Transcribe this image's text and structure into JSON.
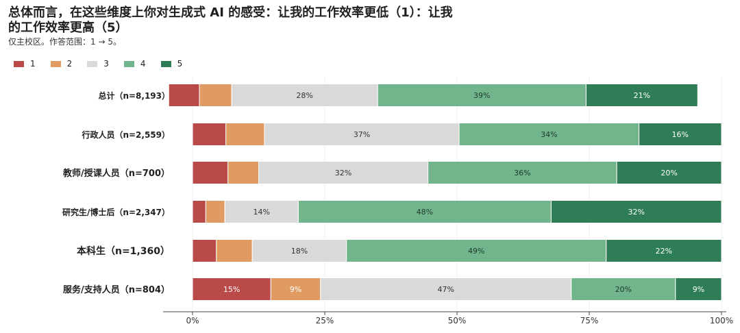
{
  "chart_data": {
    "type": "bar",
    "orientation": "horizontal",
    "stacked": true,
    "title": "总体而言，在这些维度上你对生成式 AI 的感受：让我的工作效率更低（1）：让我的工作效率更高（5）",
    "subtitle": "仅主校区。作答范围：1 → 5。",
    "xlabel": "",
    "ylabel": "",
    "xlim": [
      0,
      100
    ],
    "grid": true,
    "legend_position": "top-left",
    "x_ticks": [
      "0%",
      "25%",
      "50%",
      "75%",
      "100%"
    ],
    "x_tick_values": [
      0,
      25,
      50,
      75,
      100
    ],
    "categories": [
      "总计（n=8,193）",
      "行政人员（n=2,559）",
      "教师/授课人员（n=700）",
      "研究生/博士后（n=2,347）",
      "本科生（n=1,360）",
      "服务/支持人员（n=804）"
    ],
    "offsets": [
      -4.5,
      0,
      0,
      0,
      0,
      0
    ],
    "series": [
      {
        "name": "1",
        "color": "#b94a48",
        "values": [
          5.8,
          6.3,
          6.7,
          2.5,
          4.5,
          14.8
        ],
        "labels": [
          "",
          "",
          "",
          "",
          "",
          "15%"
        ]
      },
      {
        "name": "2",
        "color": "#e09b63",
        "values": [
          6.1,
          7.3,
          5.8,
          3.6,
          6.8,
          9.4
        ],
        "labels": [
          "",
          "",
          "",
          "",
          "",
          "9%"
        ]
      },
      {
        "name": "3",
        "color": "#d9d9d9",
        "values": [
          27.6,
          36.8,
          32.0,
          13.9,
          17.8,
          47.4
        ],
        "labels": [
          "28%",
          "37%",
          "32%",
          "14%",
          "18%",
          "47%"
        ]
      },
      {
        "name": "4",
        "color": "#72b58c",
        "values": [
          39.4,
          34.0,
          35.7,
          47.8,
          49.1,
          19.7
        ],
        "labels": [
          "39%",
          "34%",
          "36%",
          "48%",
          "49%",
          "20%"
        ]
      },
      {
        "name": "5",
        "color": "#2e7d57",
        "values": [
          21.1,
          15.6,
          19.8,
          32.2,
          21.8,
          8.7
        ],
        "labels": [
          "21%",
          "16%",
          "20%",
          "32%",
          "22%",
          "9%"
        ]
      }
    ]
  }
}
